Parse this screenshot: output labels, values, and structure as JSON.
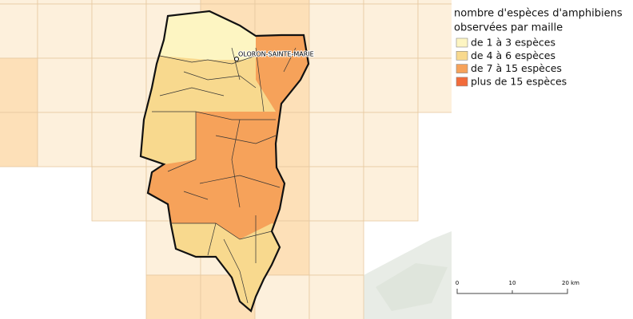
{
  "map": {
    "city_label": "OLORON-SAINTE-MARIE",
    "legend": {
      "title_lines": [
        "nombre d'espèces d'amphibiens",
        "observées par maille"
      ],
      "entries": [
        {
          "label": "de 1 à 3 espèces",
          "color": "#fdf5c2"
        },
        {
          "label": "de 4 à 6 espèces",
          "color": "#f8d98e"
        },
        {
          "label": "de 7 à 15 espèces",
          "color": "#f6a25a"
        },
        {
          "label": "plus de 15 espèces",
          "color": "#f26b3a"
        }
      ]
    },
    "scale_bar": {
      "labels": [
        "0",
        "10",
        "20 km"
      ]
    }
  }
}
